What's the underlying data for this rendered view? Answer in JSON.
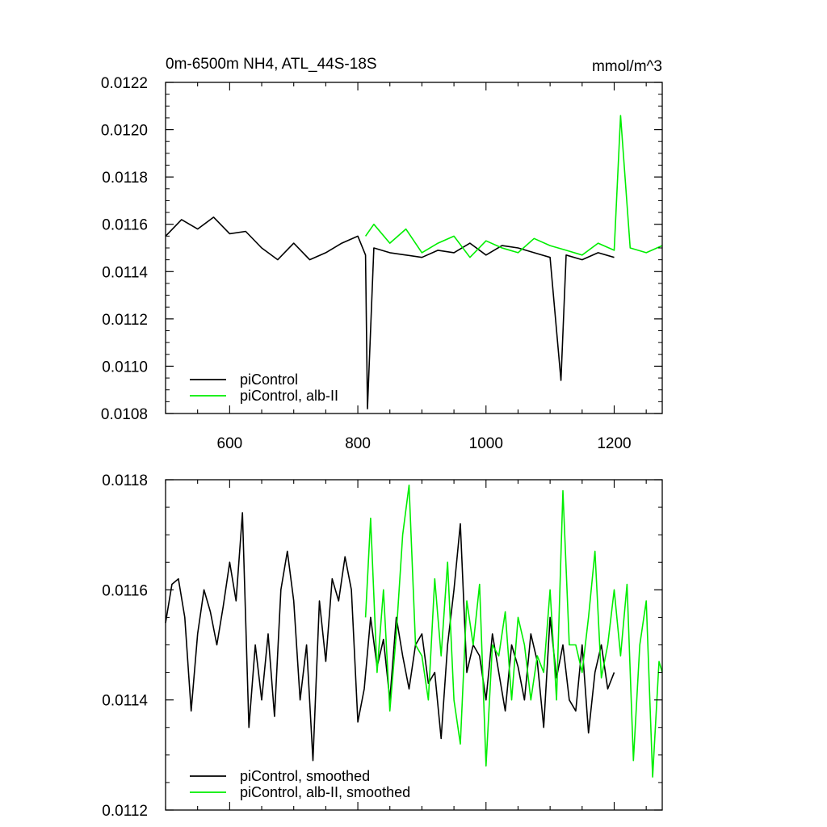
{
  "chart_data": [
    {
      "type": "line",
      "title": "0m-6500m NH4, ATL_44S-18S",
      "units": "mmol/m^3",
      "xlim": [
        500,
        1275
      ],
      "ylim": [
        0.0108,
        0.0122
      ],
      "x_ticks": [
        600,
        800,
        1000,
        1200
      ],
      "x_tick_labels": [
        "600",
        "800",
        "1000",
        "1200"
      ],
      "y_ticks": [
        0.0108,
        0.011,
        0.0112,
        0.0114,
        0.0116,
        0.0118,
        0.012,
        0.0122
      ],
      "y_tick_labels": [
        "0.0108",
        "0.0110",
        "0.0112",
        "0.0114",
        "0.0116",
        "0.0118",
        "0.0120",
        "0.0122"
      ],
      "legend_position": "bottom-left",
      "series": [
        {
          "name": "piControl",
          "color": "#000000",
          "x": [
            500,
            525,
            550,
            575,
            600,
            625,
            650,
            675,
            700,
            725,
            750,
            775,
            800,
            812,
            815,
            825,
            850,
            875,
            900,
            925,
            950,
            975,
            1000,
            1025,
            1050,
            1075,
            1100,
            1117,
            1125,
            1150,
            1175,
            1200
          ],
          "values": [
            0.01155,
            0.01162,
            0.01158,
            0.01163,
            0.01156,
            0.01157,
            0.0115,
            0.01145,
            0.01152,
            0.01145,
            0.01148,
            0.01152,
            0.01155,
            0.01147,
            0.01082,
            0.0115,
            0.01148,
            0.01147,
            0.01146,
            0.01149,
            0.01148,
            0.01152,
            0.01147,
            0.01151,
            0.0115,
            0.01148,
            0.01146,
            0.01094,
            0.01147,
            0.01145,
            0.01148,
            0.01146
          ]
        },
        {
          "name": "piControl, alb-II",
          "color": "#00ee00",
          "x": [
            812,
            825,
            850,
            875,
            900,
            925,
            950,
            975,
            1000,
            1025,
            1050,
            1075,
            1100,
            1125,
            1150,
            1175,
            1200,
            1210,
            1225,
            1250,
            1275
          ],
          "values": [
            0.01155,
            0.0116,
            0.01152,
            0.01158,
            0.01148,
            0.01152,
            0.01155,
            0.01146,
            0.01153,
            0.0115,
            0.01148,
            0.01154,
            0.01151,
            0.01149,
            0.01147,
            0.01152,
            0.01149,
            0.01206,
            0.0115,
            0.01148,
            0.01151
          ]
        }
      ]
    },
    {
      "type": "line",
      "xlim": [
        500,
        1275
      ],
      "ylim": [
        0.0112,
        0.0118
      ],
      "x_ticks": [
        600,
        800,
        1000,
        1200
      ],
      "y_ticks": [
        0.0112,
        0.0114,
        0.0116,
        0.0118
      ],
      "y_tick_labels": [
        "0.0112",
        "0.0114",
        "0.0116",
        "0.0118"
      ],
      "legend_position": "bottom-left",
      "series": [
        {
          "name": "piControl, smoothed",
          "color": "#000000",
          "x": [
            500,
            510,
            520,
            530,
            540,
            550,
            560,
            570,
            580,
            590,
            600,
            610,
            620,
            630,
            640,
            650,
            660,
            670,
            680,
            690,
            700,
            710,
            720,
            730,
            740,
            750,
            760,
            770,
            780,
            790,
            800,
            810,
            820,
            830,
            840,
            850,
            860,
            870,
            880,
            890,
            900,
            910,
            920,
            930,
            940,
            950,
            960,
            970,
            980,
            990,
            1000,
            1010,
            1020,
            1030,
            1040,
            1050,
            1060,
            1070,
            1080,
            1090,
            1100,
            1110,
            1120,
            1130,
            1140,
            1150,
            1160,
            1170,
            1180,
            1190,
            1200
          ],
          "values": [
            0.01154,
            0.01161,
            0.01162,
            0.01155,
            0.01138,
            0.01152,
            0.0116,
            0.01156,
            0.0115,
            0.01157,
            0.01165,
            0.01158,
            0.01174,
            0.01135,
            0.0115,
            0.0114,
            0.01152,
            0.01137,
            0.0116,
            0.01167,
            0.01158,
            0.0114,
            0.0115,
            0.01129,
            0.01158,
            0.01147,
            0.01162,
            0.01158,
            0.01166,
            0.0116,
            0.01136,
            0.01142,
            0.01155,
            0.01146,
            0.01151,
            0.0114,
            0.01155,
            0.01148,
            0.01142,
            0.0115,
            0.01152,
            0.01143,
            0.01145,
            0.01133,
            0.0115,
            0.0116,
            0.01172,
            0.01145,
            0.0115,
            0.01148,
            0.0114,
            0.01152,
            0.01145,
            0.01138,
            0.0115,
            0.01146,
            0.0114,
            0.01152,
            0.01147,
            0.01135,
            0.01155,
            0.01144,
            0.0115,
            0.0114,
            0.01138,
            0.0115,
            0.01134,
            0.01145,
            0.0115,
            0.01142,
            0.01145
          ]
        },
        {
          "name": "piControl, alb-II, smoothed",
          "color": "#00ee00",
          "x": [
            812,
            820,
            830,
            840,
            850,
            860,
            870,
            880,
            890,
            900,
            910,
            920,
            930,
            940,
            950,
            960,
            970,
            980,
            990,
            1000,
            1010,
            1020,
            1030,
            1040,
            1050,
            1060,
            1070,
            1080,
            1090,
            1100,
            1110,
            1120,
            1130,
            1140,
            1150,
            1160,
            1170,
            1180,
            1190,
            1200,
            1210,
            1220,
            1230,
            1240,
            1250,
            1260,
            1270,
            1275
          ],
          "values": [
            0.01155,
            0.01173,
            0.01145,
            0.0116,
            0.01138,
            0.01152,
            0.0117,
            0.01179,
            0.0115,
            0.01148,
            0.0114,
            0.01162,
            0.01148,
            0.01165,
            0.0114,
            0.01132,
            0.01158,
            0.0115,
            0.01161,
            0.01128,
            0.0115,
            0.01148,
            0.01156,
            0.0114,
            0.01155,
            0.0115,
            0.0114,
            0.01148,
            0.01145,
            0.0116,
            0.0114,
            0.01178,
            0.0115,
            0.0115,
            0.01145,
            0.01155,
            0.01167,
            0.01144,
            0.0115,
            0.0116,
            0.01148,
            0.01161,
            0.01129,
            0.0115,
            0.01158,
            0.01126,
            0.01147,
            0.01145
          ]
        }
      ]
    }
  ]
}
